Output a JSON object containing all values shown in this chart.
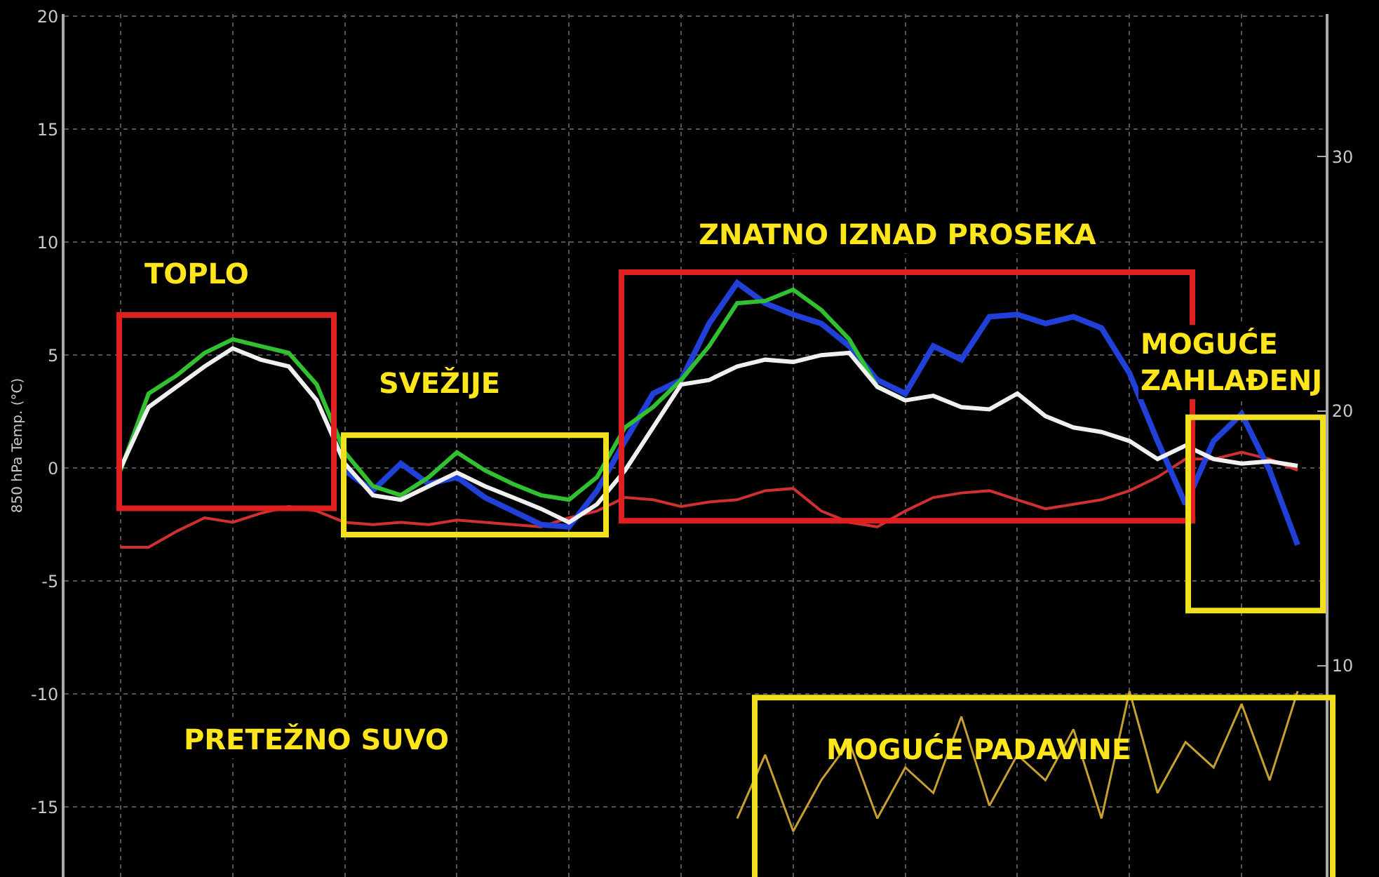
{
  "chart_data": {
    "type": "line",
    "ylabel": "850 hPa Temp. (°C)",
    "categories": [
      null,
      null,
      null,
      null,
      null,
      null,
      null,
      null,
      null,
      null,
      null,
      null,
      null,
      null,
      null,
      null,
      null,
      null,
      null,
      null,
      null,
      null,
      null,
      null,
      null,
      null,
      null,
      null,
      null,
      null,
      null,
      null,
      null,
      null,
      null,
      null,
      null,
      null,
      null,
      null,
      null,
      null,
      null
    ],
    "series": [
      {
        "color": "#d03030",
        "values": [
          -3.5,
          -3.5,
          -2.8,
          -2.2,
          -2.4,
          -2.0,
          -1.7,
          -1.9,
          -2.4,
          -2.5,
          -2.4,
          -2.5,
          -2.3,
          -2.4,
          -2.5,
          -2.6,
          -2.2,
          -1.9,
          -1.3,
          -1.4,
          -1.7,
          -1.5,
          -1.4,
          -1.0,
          -0.9,
          -1.9,
          -2.4,
          -2.6,
          -1.9,
          -1.3,
          -1.1,
          -1.0,
          -1.4,
          -1.8,
          -1.6,
          -1.4,
          -1.0,
          -0.4,
          0.4,
          0.4,
          0.7,
          0.4,
          -0.1
        ]
      },
      {
        "color": "#2040d8",
        "values": [
          null,
          null,
          null,
          null,
          null,
          null,
          null,
          null,
          -0.1,
          -1.0,
          0.2,
          -0.7,
          -0.4,
          -1.3,
          -1.9,
          -2.5,
          -2.6,
          -1.0,
          1.2,
          3.3,
          3.9,
          6.4,
          8.2,
          7.3,
          6.8,
          6.4,
          5.4,
          3.9,
          3.3,
          5.4,
          4.8,
          6.7,
          6.8,
          6.4,
          6.7,
          6.2,
          4.2,
          1.2,
          -1.6,
          1.2,
          2.4,
          -0.1,
          -3.4
        ]
      },
      {
        "color": "#30c030",
        "values": [
          -0.1,
          3.3,
          4.1,
          5.1,
          5.7,
          5.4,
          5.1,
          3.7,
          0.7,
          -0.8,
          -1.2,
          -0.4,
          0.7,
          -0.1,
          -0.7,
          -1.2,
          -1.4,
          -0.4,
          1.8,
          2.7,
          3.9,
          5.4,
          7.3,
          7.4,
          7.9,
          7.0,
          5.7,
          3.6,
          3.0,
          null,
          null,
          null,
          null,
          null,
          null,
          null,
          null,
          null,
          null,
          null,
          null,
          null,
          null
        ]
      },
      {
        "color": "#f0f0f0",
        "values": [
          0.0,
          2.7,
          3.6,
          4.5,
          5.3,
          4.8,
          4.5,
          3.0,
          0.2,
          -1.2,
          -1.4,
          -0.8,
          -0.2,
          -0.8,
          -1.3,
          -1.8,
          -2.4,
          -1.6,
          -0.1,
          1.8,
          3.7,
          3.9,
          4.5,
          4.8,
          4.7,
          5.0,
          5.1,
          3.6,
          3.0,
          3.2,
          2.7,
          2.6,
          3.3,
          2.3,
          1.8,
          1.6,
          1.2,
          0.4,
          1.0,
          0.4,
          0.2,
          0.3,
          0.1
        ]
      },
      {
        "color": "#c8a030",
        "axis": "y2",
        "values": [
          null,
          null,
          null,
          null,
          null,
          null,
          null,
          null,
          null,
          null,
          null,
          null,
          null,
          null,
          null,
          null,
          null,
          null,
          null,
          null,
          null,
          null,
          4.0,
          6.5,
          3.5,
          5.5,
          7.0,
          4.0,
          6.0,
          5.0,
          8.0,
          4.5,
          6.5,
          5.5,
          7.5,
          4.0,
          9.0,
          5.0,
          7.0,
          6.0,
          8.5,
          5.5,
          9.0
        ]
      }
    ],
    "ylim": [
      -18.1,
      20.1
    ],
    "yticks": [
      -15,
      -10,
      -5,
      0,
      5,
      10,
      15,
      20
    ],
    "y2lim": [
      1.7,
      35.6
    ],
    "y2ticks": [
      10,
      20,
      30
    ],
    "annotations": [
      "TOPLO",
      "SVEŽIJE",
      "ZNATNO IZNAD PROSEKA",
      "MOGUĆE\nZAHLAĐENJ",
      "PRETEŽNO SUVO",
      "MOGUĆE PADAVINE"
    ],
    "grid": true,
    "legend": false,
    "marker": "none",
    "line_style": "solid"
  }
}
